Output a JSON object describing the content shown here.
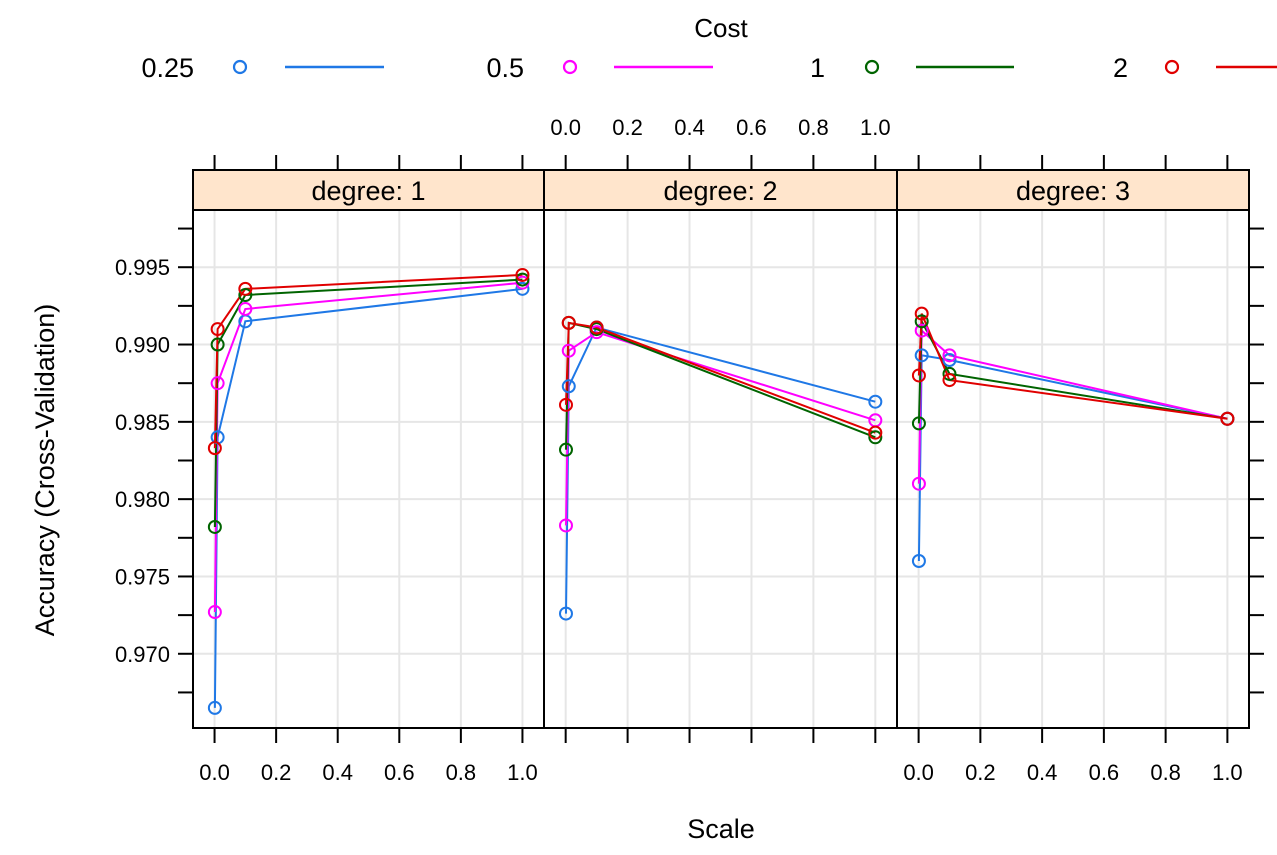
{
  "chart_data": {
    "type": "line",
    "legend": {
      "title": "Cost",
      "placement": "top",
      "entries": [
        {
          "label": "0.25",
          "color": "#1f78e6"
        },
        {
          "label": "0.5",
          "color": "#ff00ff"
        },
        {
          "label": "1",
          "color": "#006400"
        },
        {
          "label": "2",
          "color": "#e00000"
        }
      ]
    },
    "xlabel": "Scale",
    "ylabel": "Accuracy (Cross-Validation)",
    "xlim": [
      -0.07,
      1.07
    ],
    "ylim": [
      0.9652,
      0.9987
    ],
    "x_ticks": [
      "0.0",
      "0.2",
      "0.4",
      "0.6",
      "0.8",
      "1.0"
    ],
    "x_tick_values": [
      0.0,
      0.2,
      0.4,
      0.6,
      0.8,
      1.0
    ],
    "y_ticks": [
      "0.970",
      "0.975",
      "0.980",
      "0.985",
      "0.990",
      "0.995"
    ],
    "y_tick_values": [
      0.97,
      0.975,
      0.98,
      0.985,
      0.99,
      0.995
    ],
    "grid": true,
    "strip_color": "#ffe5cc",
    "panels": [
      {
        "strip": "degree: 1",
        "series": [
          {
            "name": "0.25",
            "x": [
              0.001,
              0.01,
              0.1,
              1.0
            ],
            "y": [
              0.9665,
              0.984,
              0.9915,
              0.9936
            ]
          },
          {
            "name": "0.5",
            "x": [
              0.001,
              0.01,
              0.1,
              1.0
            ],
            "y": [
              0.9727,
              0.9875,
              0.9923,
              0.994
            ]
          },
          {
            "name": "1",
            "x": [
              0.001,
              0.01,
              0.1,
              1.0
            ],
            "y": [
              0.9782,
              0.99,
              0.9932,
              0.9942
            ]
          },
          {
            "name": "2",
            "x": [
              0.001,
              0.01,
              0.1,
              1.0
            ],
            "y": [
              0.9833,
              0.991,
              0.9936,
              0.9945
            ]
          }
        ]
      },
      {
        "strip": "degree: 2",
        "series": [
          {
            "name": "0.25",
            "x": [
              0.001,
              0.01,
              0.1,
              1.0
            ],
            "y": [
              0.9726,
              0.9873,
              0.9911,
              0.9863
            ]
          },
          {
            "name": "0.5",
            "x": [
              0.001,
              0.01,
              0.1,
              1.0
            ],
            "y": [
              0.9783,
              0.9896,
              0.9908,
              0.9851
            ]
          },
          {
            "name": "1",
            "x": [
              0.001,
              0.01,
              0.1,
              1.0
            ],
            "y": [
              0.9832,
              0.9914,
              0.991,
              0.984
            ]
          },
          {
            "name": "2",
            "x": [
              0.001,
              0.01,
              0.1,
              1.0
            ],
            "y": [
              0.9861,
              0.9914,
              0.9911,
              0.9843
            ]
          }
        ]
      },
      {
        "strip": "degree: 3",
        "series": [
          {
            "name": "0.25",
            "x": [
              0.001,
              0.01,
              0.1,
              1.0
            ],
            "y": [
              0.976,
              0.9893,
              0.989,
              0.9852
            ]
          },
          {
            "name": "0.5",
            "x": [
              0.001,
              0.01,
              0.1,
              1.0
            ],
            "y": [
              0.981,
              0.9909,
              0.9893,
              0.9852
            ]
          },
          {
            "name": "1",
            "x": [
              0.001,
              0.01,
              0.1,
              1.0
            ],
            "y": [
              0.9849,
              0.9915,
              0.9881,
              0.9852
            ]
          },
          {
            "name": "2",
            "x": [
              0.001,
              0.01,
              0.1,
              1.0
            ],
            "y": [
              0.988,
              0.992,
              0.9877,
              0.9852
            ]
          }
        ]
      }
    ]
  }
}
